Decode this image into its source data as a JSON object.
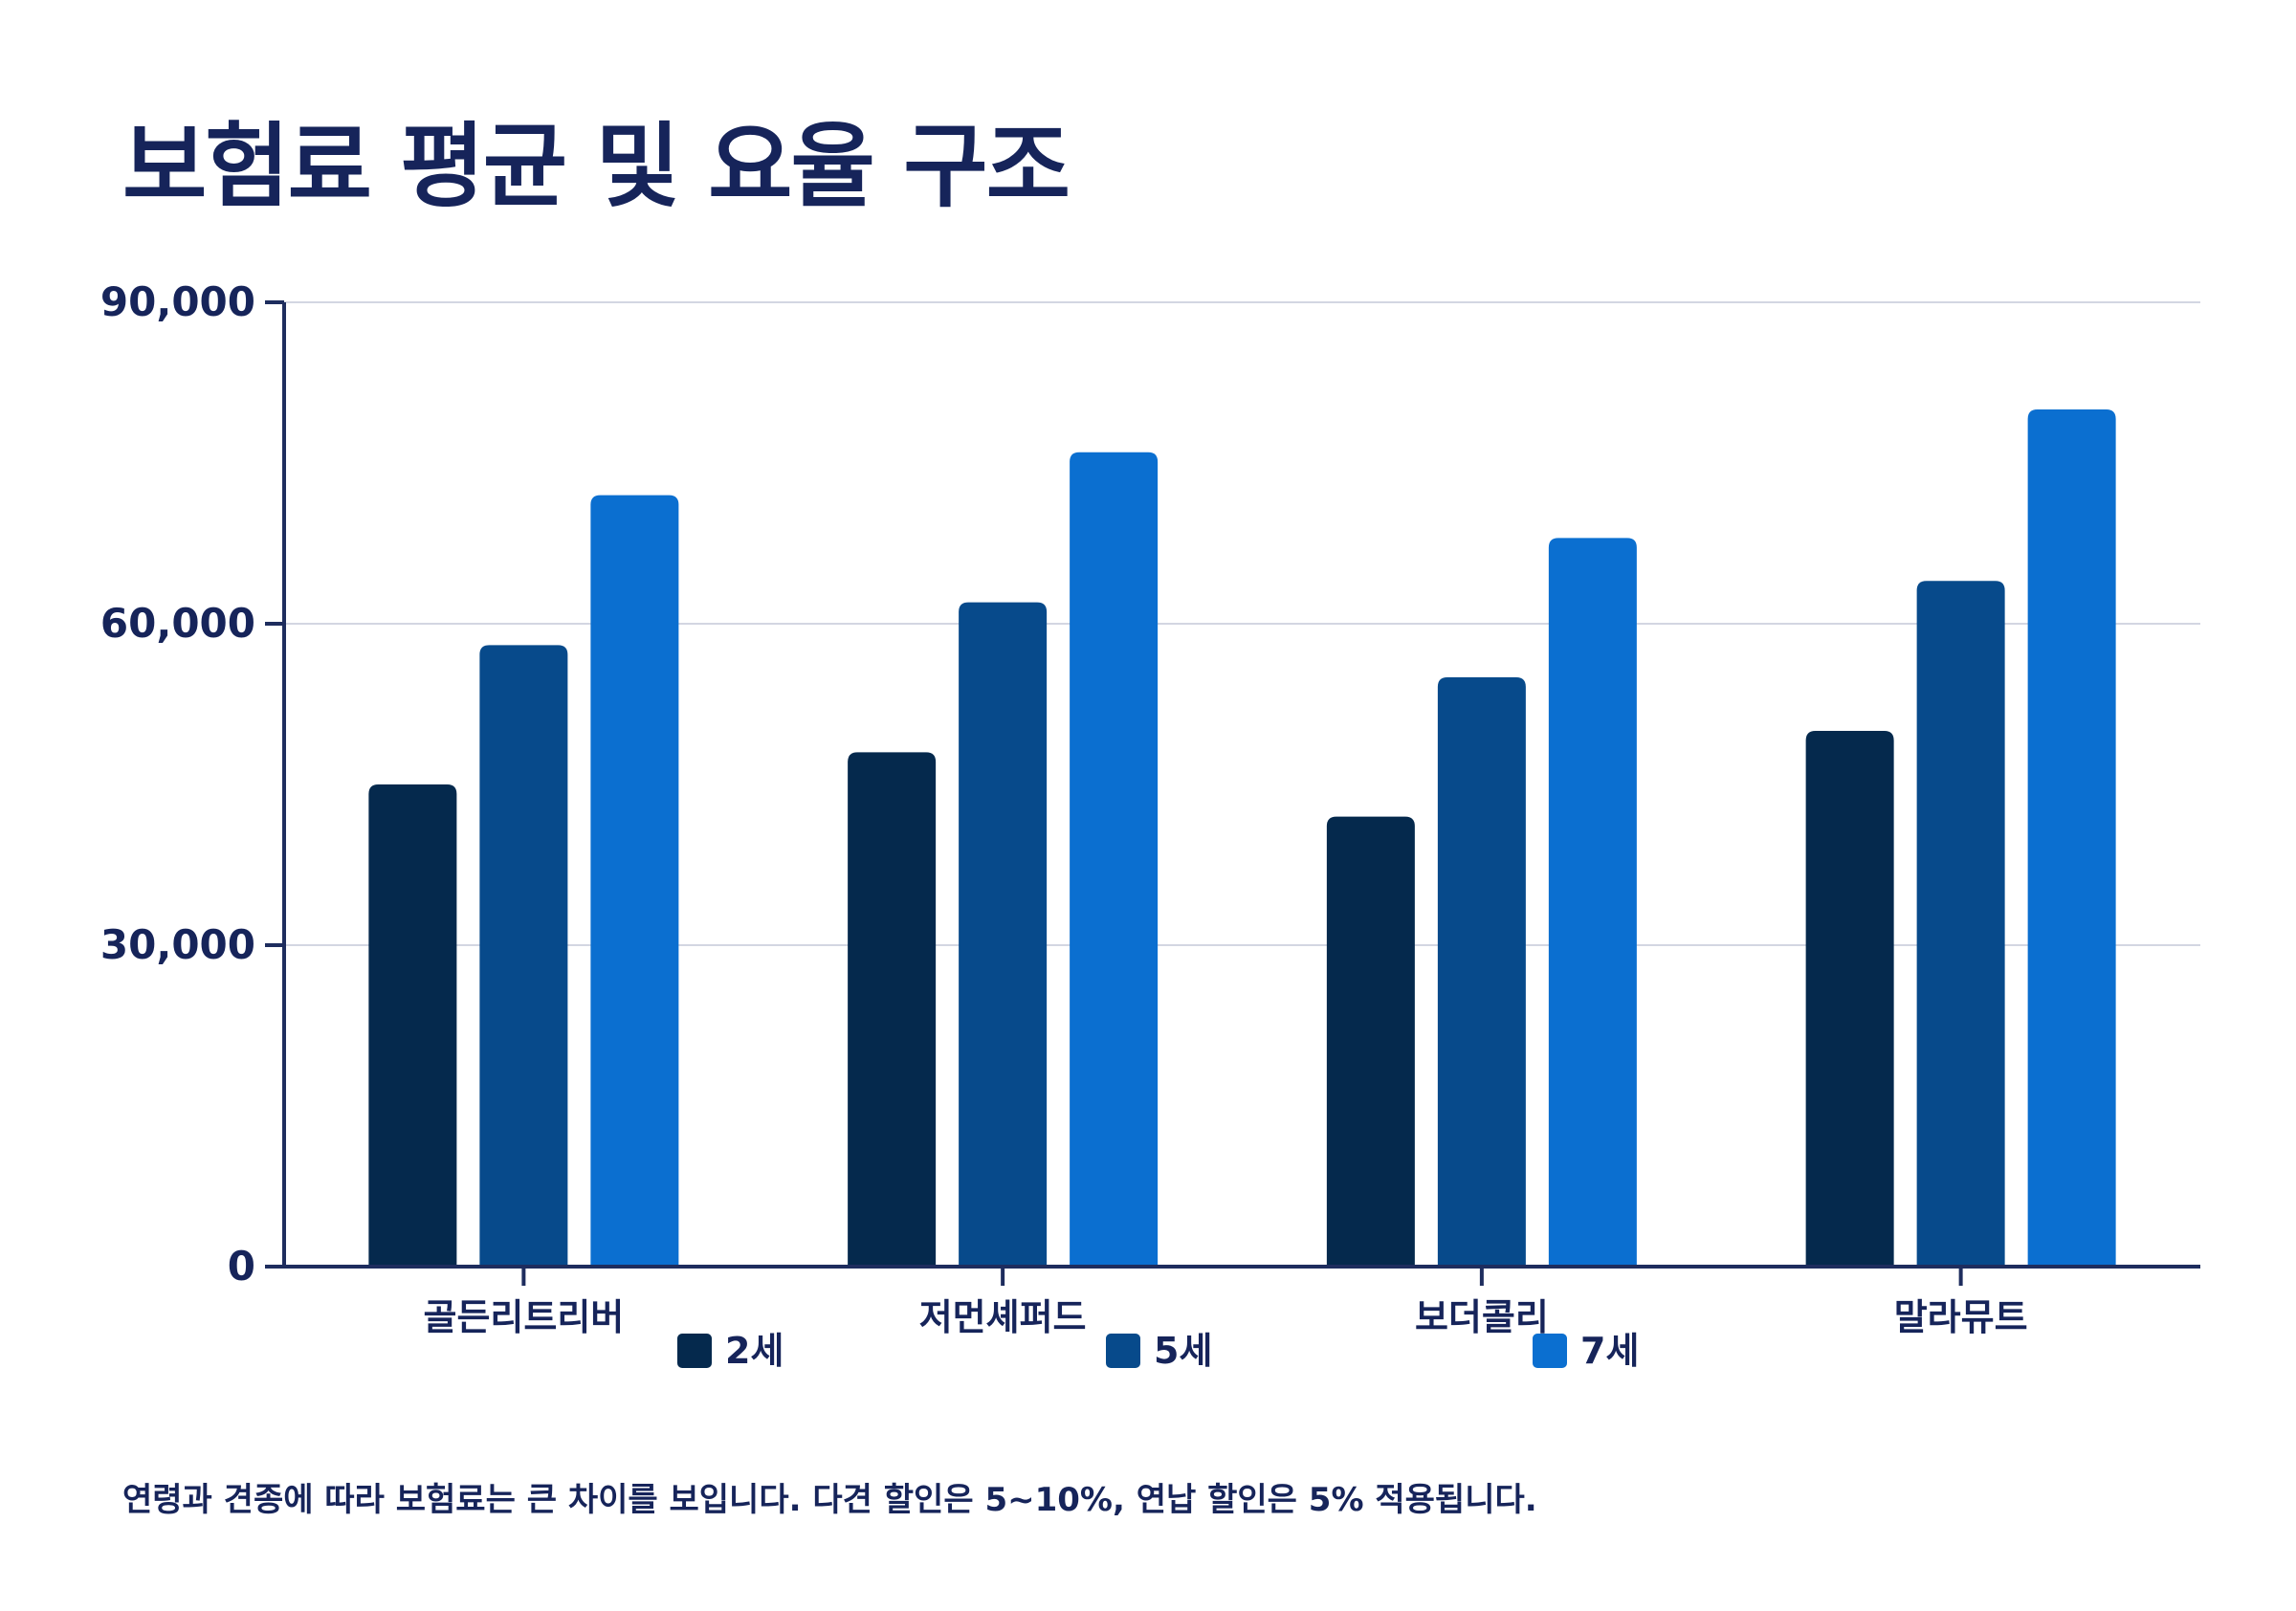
{
  "title": "보험료 평균 및 요율 구조",
  "footnote": "연령과 견종에 따라 보험료는 큰 차이를 보입니다. 다견 할인은 5~10%, 연납 할인은 5% 적용됩니다.",
  "colors": {
    "text": "#16245a",
    "axis": "#1e2d5e",
    "grid": "#d3d6e2"
  },
  "chart_data": {
    "type": "bar",
    "title": "보험료 평균 및 요율 구조",
    "categories": [
      "골든리트리버",
      "저먼셰퍼드",
      "보더콜리",
      "말라뮤트"
    ],
    "series": [
      {
        "name": "2세",
        "color": "#05294d",
        "values": [
          45000,
          48000,
          42000,
          50000
        ]
      },
      {
        "name": "5세",
        "color": "#074a8b",
        "values": [
          58000,
          62000,
          55000,
          64000
        ]
      },
      {
        "name": "7세",
        "color": "#0b6fd0",
        "values": [
          72000,
          76000,
          68000,
          80000
        ]
      }
    ],
    "ylim": [
      0,
      90000
    ],
    "yticks": [
      0,
      30000,
      60000,
      90000
    ],
    "ytick_labels": [
      "0",
      "30,000",
      "60,000",
      "90,000"
    ],
    "grid": true,
    "legend_position": "bottom"
  }
}
